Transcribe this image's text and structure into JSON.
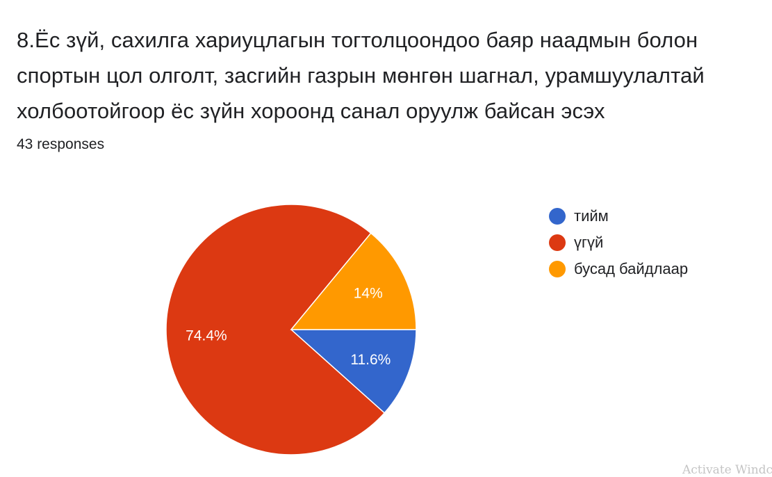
{
  "question": {
    "title": "8.Ёс зүй, сахилга хариуцлагын тогтолцоондоо баяр наадмын болон спортын цол олголт, засгийн газрын мөнгөн шагнал, урамшуулалтай холбоотойгоор ёс зүйн хороонд санал оруулж байсан эсэх",
    "responses": "43 responses"
  },
  "chart_data": {
    "type": "pie",
    "slices": [
      {
        "label": "тийм",
        "value": 11.6,
        "display": "11.6%",
        "color": "#3366cc"
      },
      {
        "label": "үгүй",
        "value": 74.4,
        "display": "74.4%",
        "color": "#dc3912"
      },
      {
        "label": "бусад байдлаар",
        "value": 14.0,
        "display": "14%",
        "color": "#ff9900"
      }
    ],
    "start_angle": "3 o'clock",
    "direction": "clockwise",
    "legend_position": "right"
  },
  "watermark": "Activate Windc"
}
